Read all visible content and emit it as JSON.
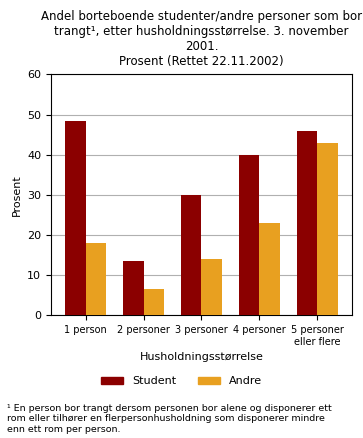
{
  "chart_data": {
    "type": "bar",
    "title": "Andel borteboende studenter/andre personer som bor\ntrangt¹, etter husholdningsstørrelse. 3. november 2001.\nProsent (Rettet 22.11.2002)",
    "x_label": "Husholdningsstørrelse",
    "y_label": "Prosent",
    "categories": [
      "1 person",
      "2 personer",
      "3 personer",
      "4 personer",
      "5 personer\neller flere"
    ],
    "series": [
      {
        "name": "Student",
        "color": "#8B0000",
        "values": [
          48.5,
          13.5,
          30.0,
          40.0,
          46.0
        ]
      },
      {
        "name": "Andre",
        "color": "#E8A020",
        "values": [
          18.0,
          6.5,
          14.0,
          23.0,
          43.0
        ]
      }
    ],
    "ylim": [
      0,
      60
    ],
    "yticks": [
      0,
      10,
      20,
      30,
      40,
      50,
      60
    ],
    "grid": true,
    "legend": "lower center",
    "annotations": [
      "¹ En person bor trangt dersom personen bor alene og disponerer ett\nrom eller tilhører en flerpersonhusholdning som disponerer mindre\nenn ett rom per person."
    ]
  }
}
